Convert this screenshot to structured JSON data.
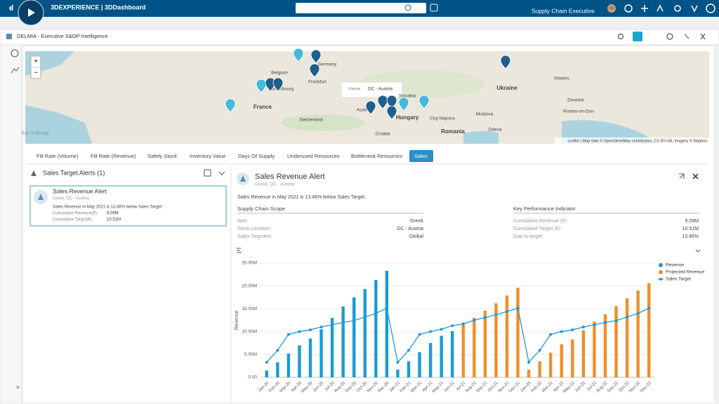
{
  "topbar": {
    "brand": "3DEXPERIENCE | 3DDashboard",
    "user": "Supply Chain Executive",
    "avatar": "DD"
  },
  "app": {
    "title": "DELMIA - Executive S&OP Intelligence"
  },
  "map": {
    "labels": [
      "Belgium",
      "Frankfurt",
      "Germany",
      "Luxembourg",
      "France",
      "Switzerland",
      "Austria",
      "Slovakia",
      "Hungary",
      "Croatia",
      "Romania",
      "Cluj-Napoca",
      "Moldova",
      "Ukraine",
      "Kharkiv",
      "Donetsk",
      "Rostov-on-Don",
      "Odesa",
      "Bay of Biscay"
    ],
    "popup": {
      "key": "Name",
      "value": "DC - Austria"
    },
    "attribution": "Leaflet | Map data © OpenStreetMap contributors, CC-BY-SA, Imagery © Mapbox",
    "zoom_in": "+",
    "zoom_out": "−"
  },
  "tabs": [
    {
      "label": "Fill Rate (Volume)"
    },
    {
      "label": "Fill Rate (Revenue)"
    },
    {
      "label": "Safety Stock"
    },
    {
      "label": "Inventory Value"
    },
    {
      "label": "Days Of Supply"
    },
    {
      "label": "Underused Resources"
    },
    {
      "label": "Bottleneck Resources"
    },
    {
      "label": "Sales",
      "active": true
    }
  ],
  "alerts": {
    "title": "Sales Target Alerts (1)",
    "card": {
      "title": "Sales Revenue Alert",
      "subtitle": "Greek, DC - Austria",
      "message": "Sales Revenue in May 2021 is 13.46% below Sales Target.",
      "rows": [
        [
          "Cumulative Revenue(€):",
          "9.09M"
        ],
        [
          "Cumulative Target(€):",
          "10.51M"
        ]
      ]
    }
  },
  "detail": {
    "title": "Sales Revenue Alert",
    "subtitle": "Greek, DC - Austria",
    "message": "Sales Revenue in May 2021 is 13.46% below Sales Target.",
    "scope": {
      "title": "Supply Chain Scope",
      "rows": [
        [
          "Item:",
          "Greek"
        ],
        [
          "Stock Location:",
          "DC - Austria"
        ],
        [
          "Sales Segment:",
          "Global"
        ]
      ]
    },
    "kpi": {
      "title": "Key Performance Indicator",
      "rows": [
        [
          "Cumulative Revenue (€):",
          "9.09M"
        ],
        [
          "Cumulative Target (€):",
          "10.51M"
        ],
        [
          "Gap to target:",
          "13.46%"
        ]
      ]
    }
  },
  "chart_data": {
    "type": "bar",
    "y_label": "Revenue",
    "categories": [
      "Jan-20",
      "Feb-20",
      "Mar-20",
      "Apr-20",
      "May-20",
      "Jun-20",
      "Jul-20",
      "Aug-20",
      "Sep-20",
      "Oct-20",
      "Nov-20",
      "Dec-20",
      "Jan-21",
      "Feb-21",
      "Mar-21",
      "Apr-21",
      "May-21",
      "Jun-21",
      "Jul-21",
      "Aug-21",
      "Sep-21",
      "Oct-21",
      "Nov-21",
      "Dec-21",
      "Jan-22",
      "Feb-22",
      "Mar-22",
      "Apr-22",
      "May-22",
      "Jun-22",
      "Jul-22",
      "Aug-22",
      "Sep-22",
      "Oct-22",
      "Nov-22",
      "Dec-22"
    ],
    "series": [
      {
        "name": "Revenue",
        "color": "#1a9bd7",
        "type": "bar",
        "values": [
          1.5,
          3.3,
          5.2,
          7,
          8.5,
          10.5,
          13,
          15.5,
          17.5,
          19.3,
          21.3,
          23.3,
          1.7,
          3.5,
          5.5,
          7.5,
          9.1,
          10.1,
          null,
          null,
          null,
          null,
          null,
          null,
          null,
          null,
          null,
          null,
          null,
          null,
          null,
          null,
          null,
          null,
          null,
          null
        ]
      },
      {
        "name": "Projected Revenue",
        "color": "#f28e2b",
        "type": "bar",
        "values": [
          null,
          null,
          null,
          null,
          null,
          null,
          null,
          null,
          null,
          null,
          null,
          null,
          null,
          null,
          null,
          null,
          null,
          null,
          11.7,
          13,
          14.6,
          16.2,
          17.9,
          19.6,
          1.7,
          3.5,
          5.4,
          7.2,
          8.3,
          10.3,
          12.2,
          13.8,
          15.6,
          17.3,
          19,
          20.6
        ]
      },
      {
        "name": "Sales Target",
        "color": "#1a9bd7",
        "type": "line",
        "values": [
          3.3,
          5.9,
          9.4,
          10,
          10.4,
          11,
          11.5,
          12,
          12.4,
          13.2,
          14,
          15.1,
          3.3,
          5.9,
          9.4,
          10,
          10.51,
          11.3,
          11.7,
          12.5,
          13.1,
          13.7,
          14.4,
          15.1,
          3.3,
          5.9,
          9.4,
          10,
          10.4,
          11,
          11.5,
          12,
          12.4,
          13.2,
          14,
          15.1
        ]
      }
    ],
    "ylim": [
      0,
      25
    ],
    "yticks": [
      {
        "value": 0,
        "label": "0.00"
      },
      {
        "value": 5,
        "label": "5.00M"
      },
      {
        "value": 10,
        "label": "10.00M"
      },
      {
        "value": 15,
        "label": "15.00M"
      },
      {
        "value": 20,
        "label": "20.00M"
      },
      {
        "value": 25,
        "label": "25.00M"
      }
    ],
    "grid": true,
    "legend": "top-right"
  }
}
